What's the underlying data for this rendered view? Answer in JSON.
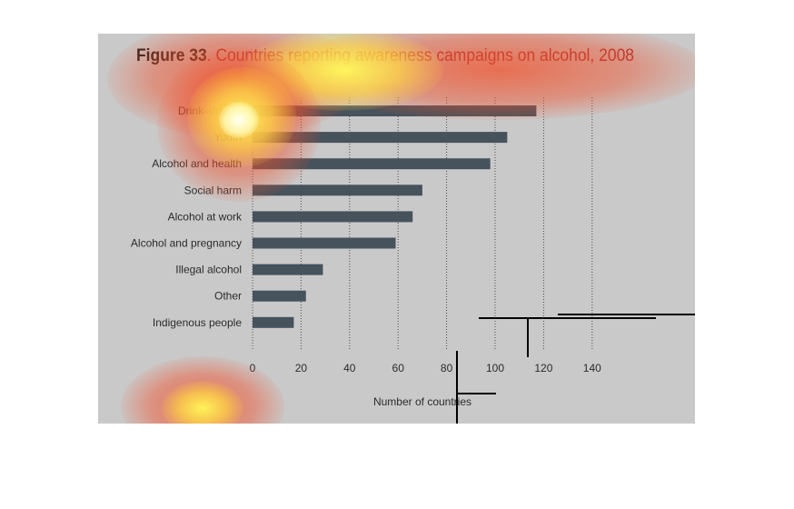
{
  "title": {
    "figure_label": "Figure 33",
    "text": ". Countries reporting awareness campaigns on alcohol, 2008"
  },
  "colors": {
    "bar": "#46525c",
    "panel": "#c9c9c9",
    "title_accent": "#a52a2a",
    "heat_hot": "#fffb5a",
    "heat_mid": "#f2502a"
  },
  "chart_data": {
    "type": "bar",
    "orientation": "horizontal",
    "title": "Figure 33. Countries reporting awareness campaigns on alcohol, 2008",
    "xlabel": "Number of countries",
    "ylabel": "",
    "xlim": [
      0,
      140
    ],
    "xticks": [
      0,
      20,
      40,
      60,
      80,
      100,
      120,
      140
    ],
    "grid": "vertical dotted",
    "categories": [
      "Drink–driving",
      "Youth",
      "Alcohol and health",
      "Social harm",
      "Alcohol at work",
      "Alcohol and pregnancy",
      "Illegal alcohol",
      "Other",
      "Indigenous people"
    ],
    "values": [
      117,
      105,
      98,
      70,
      66,
      59,
      29,
      22,
      17
    ]
  },
  "overlay": {
    "type": "attention heatmap"
  }
}
